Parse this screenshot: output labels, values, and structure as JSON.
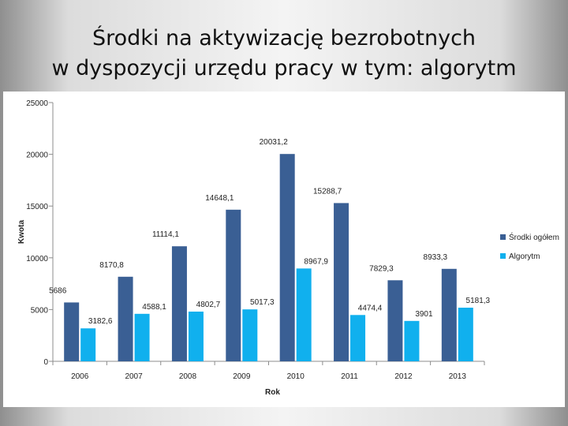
{
  "slide": {
    "title_line1": "Środki na aktywizację bezrobotnych",
    "title_line2": "w dyspozycji urzędu pracy w tym:  algorytm"
  },
  "colors": {
    "series_total": "#3a5f94",
    "series_algorithm": "#10b0ee"
  },
  "chart_data": {
    "type": "bar",
    "title": "",
    "xlabel": "Rok",
    "ylabel": "Kwota",
    "ylim": [
      0,
      25000
    ],
    "yticks": [
      "0",
      "5000",
      "10000",
      "15000",
      "20000",
      "25000"
    ],
    "categories": [
      "2006",
      "2007",
      "2008",
      "2009",
      "2010",
      "2011",
      "2012",
      "2013"
    ],
    "grid": false,
    "legend_position": "right",
    "series": [
      {
        "name": "Środki ogółem",
        "values": [
          5686,
          8170.8,
          11114.1,
          14648.1,
          20031.2,
          15288.7,
          7829.3,
          8933.3
        ],
        "labels": [
          "5686",
          "8170,8",
          "11114,1",
          "14648,1",
          "20031,2",
          "15288,7",
          "7829,3",
          "8933,3"
        ]
      },
      {
        "name": "Algorytm",
        "values": [
          3182.6,
          4588.1,
          4802.7,
          5017.3,
          8967.9,
          4474.4,
          3901,
          5181.3
        ],
        "labels": [
          "3182,6",
          "4588,1",
          "4802,7",
          "5017,3",
          "8967,9",
          "4474,4",
          "3901",
          "5181,3"
        ]
      }
    ]
  }
}
